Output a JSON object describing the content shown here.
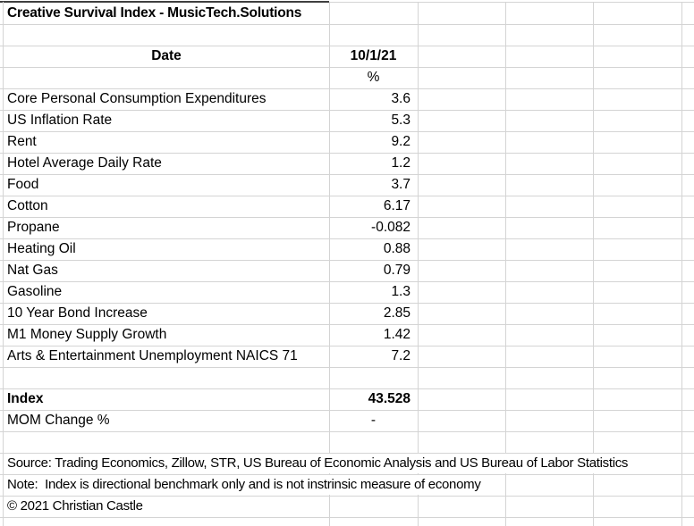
{
  "sheet_title": "Creative Survival Index - MusicTech.Solutions",
  "header": {
    "date_label": "Date",
    "date_value": "10/1/21",
    "unit": "%"
  },
  "rows": [
    {
      "label": "Core Personal Consumption Expenditures",
      "value": "3.6"
    },
    {
      "label": "US Inflation Rate",
      "value": "5.3"
    },
    {
      "label": "Rent",
      "value": "9.2"
    },
    {
      "label": "Hotel Average Daily Rate",
      "value": "1.2"
    },
    {
      "label": "Food",
      "value": "3.7"
    },
    {
      "label": "Cotton",
      "value": "6.17"
    },
    {
      "label": "Propane",
      "value": "-0.082"
    },
    {
      "label": "Heating Oil",
      "value": "0.88"
    },
    {
      "label": "Nat Gas",
      "value": "0.79"
    },
    {
      "label": "Gasoline",
      "value": "1.3"
    },
    {
      "label": "10 Year Bond Increase",
      "value": "2.85"
    },
    {
      "label": "M1 Money Supply Growth",
      "value": "1.42"
    },
    {
      "label": "Arts & Entertainment Unemployment NAICS 71",
      "value": "7.2"
    }
  ],
  "summary": {
    "index_label": "Index",
    "index_value": "43.528",
    "mom_label": "MOM Change %",
    "mom_value": "-"
  },
  "footer": {
    "source": "Source: Trading Economics, Zillow, STR, US Bureau of Economic Analysis and US Bureau of Labor Statistics",
    "note": "Note:  Index is directional benchmark only and is not instrinsic measure of economy",
    "copyright": "© 2021 Christian Castle"
  },
  "colors": {
    "gridline": "#d4d4d4",
    "title_top_border": "#3f3f3f",
    "text": "#000000",
    "background": "#ffffff"
  }
}
